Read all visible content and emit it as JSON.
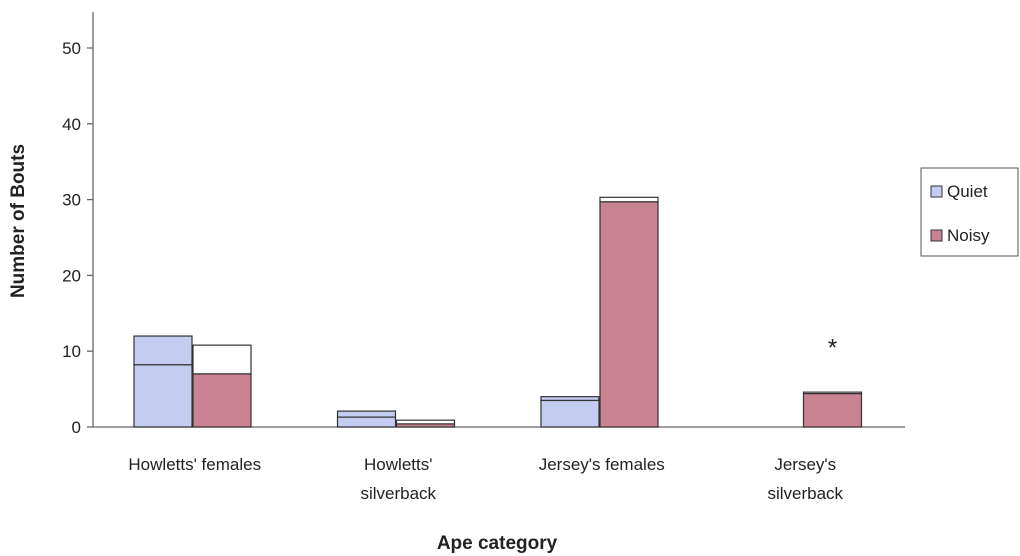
{
  "chart_data": {
    "type": "bar",
    "title": "",
    "xlabel": "Ape category",
    "ylabel": "Number of Bouts",
    "ylim": [
      0,
      50
    ],
    "yticks": [
      0,
      10,
      20,
      30,
      40,
      50
    ],
    "grid": false,
    "legend_position": "right",
    "categories": [
      [
        "Howletts' females"
      ],
      [
        "Howletts'",
        "silverback"
      ],
      [
        "Jersey's females"
      ],
      [
        "Jersey's",
        "silverback"
      ]
    ],
    "series": [
      {
        "name": "Quiet",
        "color": "#c4ccf2",
        "values": [
          8.2,
          1.3,
          3.5,
          0
        ],
        "stack_totals": [
          12,
          2.1,
          4,
          0
        ]
      },
      {
        "name": "Noisy",
        "color": "#c98392",
        "values": [
          7.0,
          0.4,
          29.7,
          4.4
        ],
        "stack_totals": [
          10.8,
          0.9,
          30.3,
          4.6
        ]
      }
    ],
    "annotations": [
      {
        "text": "*",
        "category_index": 3,
        "y": 10.5
      }
    ]
  }
}
